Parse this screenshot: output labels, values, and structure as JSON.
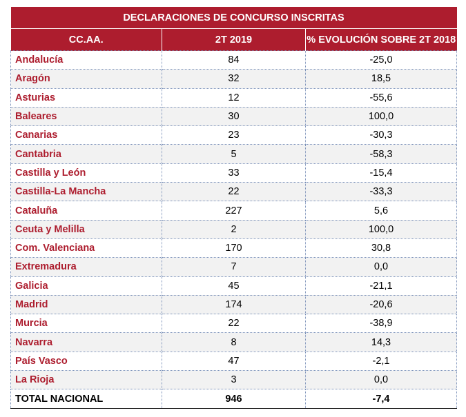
{
  "chart_data": {
    "type": "table",
    "title": "DECLARACIONES DE CONCURSO INSCRITAS",
    "columns": [
      "CC.AA.",
      "2T 2019",
      "% EVOLUCIÓN SOBRE 2T 2018"
    ],
    "rows": [
      {
        "region": "Andalucía",
        "value": "84",
        "change": "-25,0"
      },
      {
        "region": "Aragón",
        "value": "32",
        "change": "18,5"
      },
      {
        "region": "Asturias",
        "value": "12",
        "change": "-55,6"
      },
      {
        "region": "Baleares",
        "value": "30",
        "change": "100,0"
      },
      {
        "region": "Canarias",
        "value": "23",
        "change": "-30,3"
      },
      {
        "region": "Cantabria",
        "value": "5",
        "change": "-58,3"
      },
      {
        "region": "Castilla y León",
        "value": "33",
        "change": "-15,4"
      },
      {
        "region": "Castilla-La Mancha",
        "value": "22",
        "change": "-33,3"
      },
      {
        "region": "Cataluña",
        "value": "227",
        "change": "5,6"
      },
      {
        "region": "Ceuta y Melilla",
        "value": "2",
        "change": "100,0"
      },
      {
        "region": "Com. Valenciana",
        "value": "170",
        "change": "30,8"
      },
      {
        "region": "Extremadura",
        "value": "7",
        "change": "0,0"
      },
      {
        "region": "Galicia",
        "value": "45",
        "change": "-21,1"
      },
      {
        "region": "Madrid",
        "value": "174",
        "change": "-20,6"
      },
      {
        "region": "Murcia",
        "value": "22",
        "change": "-38,9"
      },
      {
        "region": "Navarra",
        "value": "8",
        "change": "14,3"
      },
      {
        "region": "País Vasco",
        "value": "47",
        "change": "-2,1"
      },
      {
        "region": "La Rioja",
        "value": "3",
        "change": "0,0"
      }
    ],
    "total": {
      "region": "TOTAL NACIONAL",
      "value": "946",
      "change": "-7,4"
    }
  },
  "colors": {
    "header_bg": "#ad1d2e",
    "region_text": "#ad1d2e",
    "alt_row_bg": "#f2f2f2",
    "grid": "#7a90b8"
  }
}
